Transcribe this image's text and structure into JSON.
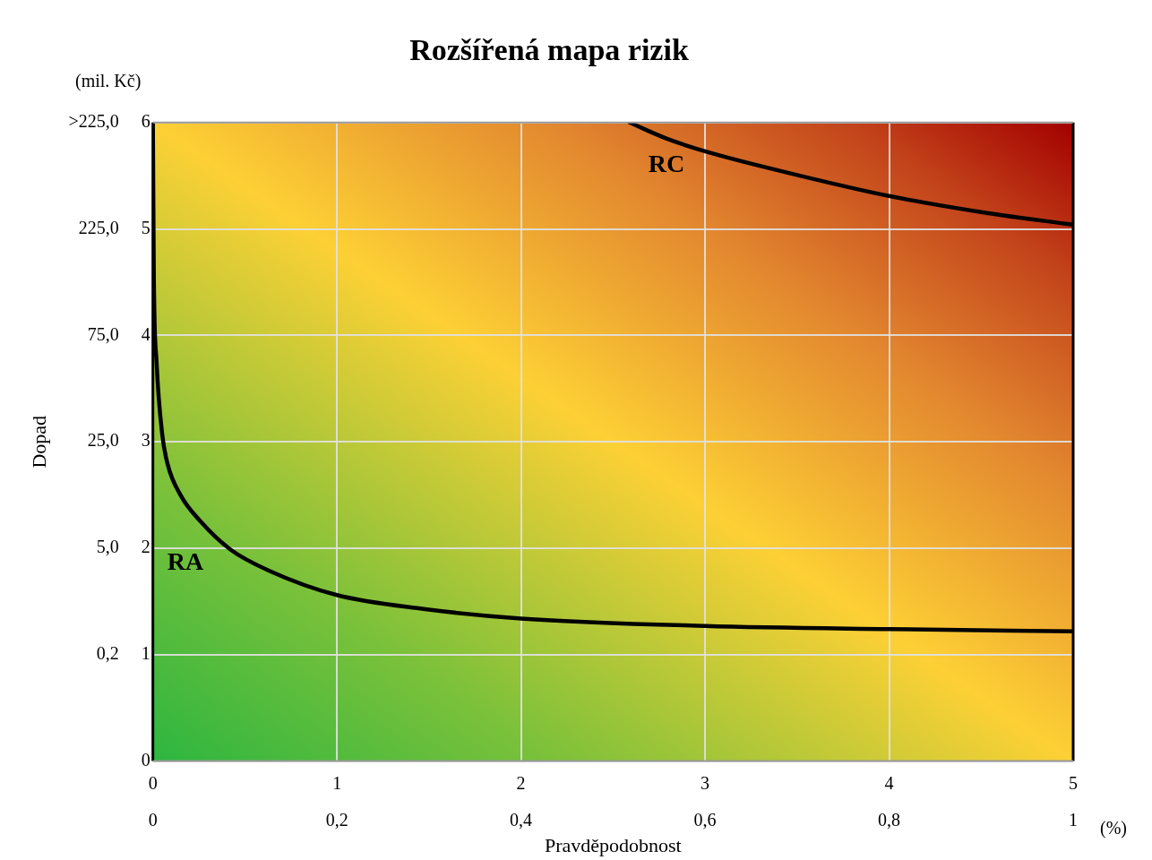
{
  "chart_data": {
    "type": "line",
    "title": "Rozšířená mapa rizik",
    "xlabel": "Pravděpodobnost",
    "ylabel": "Dopad",
    "y2label": "(mil. Kč)",
    "x2label": "(%)",
    "xlim": [
      0,
      5
    ],
    "xticks": [
      0,
      1,
      2,
      3,
      4,
      5
    ],
    "x2lim": [
      0,
      1
    ],
    "x2ticks": [
      0,
      {
        "value": 0.2,
        "label": "0,2"
      },
      {
        "value": 0.4,
        "label": "0,4"
      },
      {
        "value": 0.6,
        "label": "0,6"
      },
      {
        "value": 0.8,
        "label": "0,8"
      },
      1
    ],
    "ylim": [
      0,
      6
    ],
    "yticks": [
      0,
      1,
      2,
      3,
      4,
      5,
      6
    ],
    "y2_categories": [
      ">225,0",
      "225,0",
      "75,0",
      "25,0",
      "5,0",
      "0,2",
      null
    ],
    "grid": true,
    "legend": false,
    "marker": "none",
    "line_style": "solid",
    "series": [
      {
        "name": "RA",
        "color": "#000000",
        "x": [
          0,
          0.005,
          0.02,
          0.05,
          0.08,
          0.15,
          0.26,
          0.42,
          0.63,
          1.0,
          1.47,
          2.0,
          3.0,
          4.0,
          5.0
        ],
        "values": [
          6,
          4.58,
          3.75,
          3.08,
          2.79,
          2.5,
          2.25,
          1.99,
          1.79,
          1.56,
          1.43,
          1.34,
          1.27,
          1.24,
          1.22
        ]
      },
      {
        "name": "RC",
        "color": "#000000",
        "x": [
          2.59,
          2.79,
          3.0,
          3.47,
          4.0,
          4.53,
          5.0
        ],
        "values": [
          6,
          5.85,
          5.73,
          5.52,
          5.31,
          5.15,
          5.04
        ]
      }
    ]
  }
}
